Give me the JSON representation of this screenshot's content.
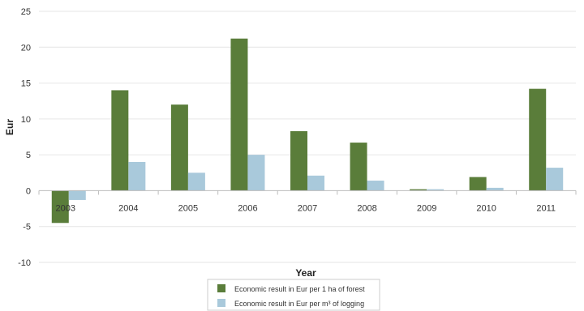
{
  "chart_data": {
    "type": "bar",
    "title": "",
    "xlabel": "Year",
    "ylabel": "Eur",
    "ylim": [
      -10,
      25
    ],
    "yticks": [
      -10,
      -5,
      0,
      5,
      10,
      15,
      20,
      25
    ],
    "categories": [
      "2003",
      "2004",
      "2005",
      "2006",
      "2007",
      "2008",
      "2009",
      "2010",
      "2011"
    ],
    "series": [
      {
        "name": "Economic result in Eur per 1 ha of forest",
        "color": "#5a7d3a",
        "values": [
          -4.5,
          14.0,
          12.0,
          21.2,
          8.3,
          6.7,
          0.2,
          1.9,
          14.2
        ]
      },
      {
        "name": "Economic result in Eur per m³ of logging",
        "color": "#a9c9db",
        "values": [
          -1.3,
          4.0,
          2.5,
          5.0,
          2.1,
          1.4,
          0.2,
          0.4,
          3.2
        ]
      }
    ],
    "grid": "horizontal",
    "legend_position": "bottom-center"
  }
}
